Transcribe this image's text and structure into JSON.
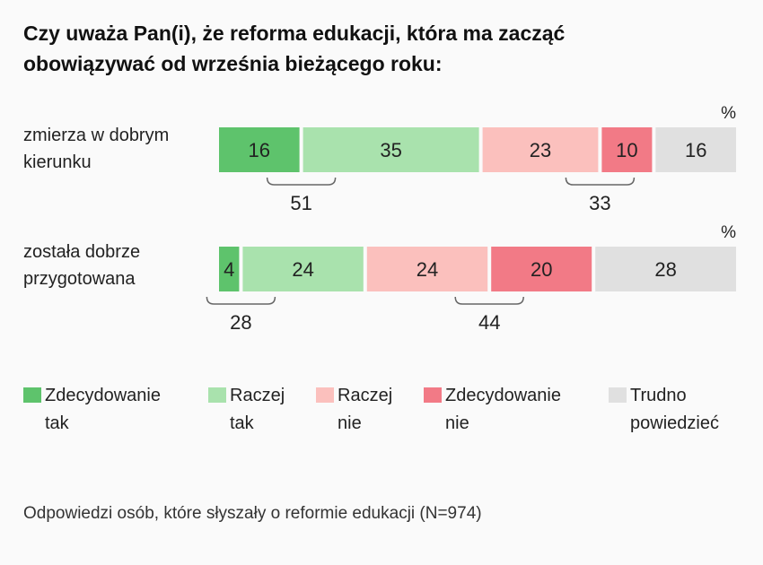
{
  "title_line1": "Czy uważa Pan(i), że reforma edukacji, która ma zacząć",
  "title_line2": "obowiązywać od września bieżącego roku:",
  "note": "Odpowiedzi osób, które słyszały o reformie edukacji (N=974)",
  "colors": {
    "zdecydowanie_tak": "#5ec36c",
    "raczej_tak": "#a9e2ad",
    "raczej_nie": "#fbc0bd",
    "zdecydowanie_nie": "#f27a86",
    "trudno_powiedziec": "#e0e0e0"
  },
  "legend": [
    {
      "line1": "Zdecydowanie",
      "line2": "tak",
      "color": "#5ec36c"
    },
    {
      "line1": "Raczej",
      "line2": "tak",
      "color": "#a9e2ad"
    },
    {
      "line1": "Raczej",
      "line2": "nie",
      "color": "#fbc0bd"
    },
    {
      "line1": "Zdecydowanie",
      "line2": "nie",
      "color": "#f27a86"
    },
    {
      "line1": "Trudno",
      "line2": "powiedzieć",
      "color": "#e0e0e0"
    }
  ],
  "chart_data": {
    "type": "bar",
    "orientation": "horizontal",
    "stacked": true,
    "unit": "%",
    "categories": [
      "zmierza w dobrym kierunku",
      "została dobrze przygotowana"
    ],
    "category_lines": [
      [
        "zmierza w dobrym",
        "kierunku"
      ],
      [
        "została dobrze",
        "przygotowana"
      ]
    ],
    "series": [
      {
        "name": "Zdecydowanie tak",
        "values": [
          16,
          4
        ]
      },
      {
        "name": "Raczej tak",
        "values": [
          35,
          24
        ]
      },
      {
        "name": "Raczej nie",
        "values": [
          23,
          24
        ]
      },
      {
        "name": "Zdecydowanie nie",
        "values": [
          10,
          20
        ]
      },
      {
        "name": "Trudno powiedzieć",
        "values": [
          16,
          28
        ]
      }
    ],
    "totals": {
      "tak": [
        51,
        28
      ],
      "nie": [
        33,
        44
      ]
    },
    "legend_position": "bottom"
  }
}
